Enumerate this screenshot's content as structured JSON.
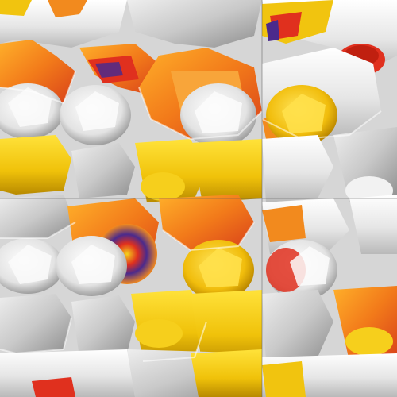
{
  "image": {
    "kind": "abstract-render",
    "palette": {
      "white": "#f2f2f2",
      "light_gray": "#d9d9d9",
      "mid_gray": "#a8a8a8",
      "dark_gray": "#6e6e6e",
      "yellow": "#f1c40f",
      "gold": "#d4a300",
      "orange": "#f28a1e",
      "red": "#e0301e",
      "purple": "#4b2a8c"
    }
  }
}
